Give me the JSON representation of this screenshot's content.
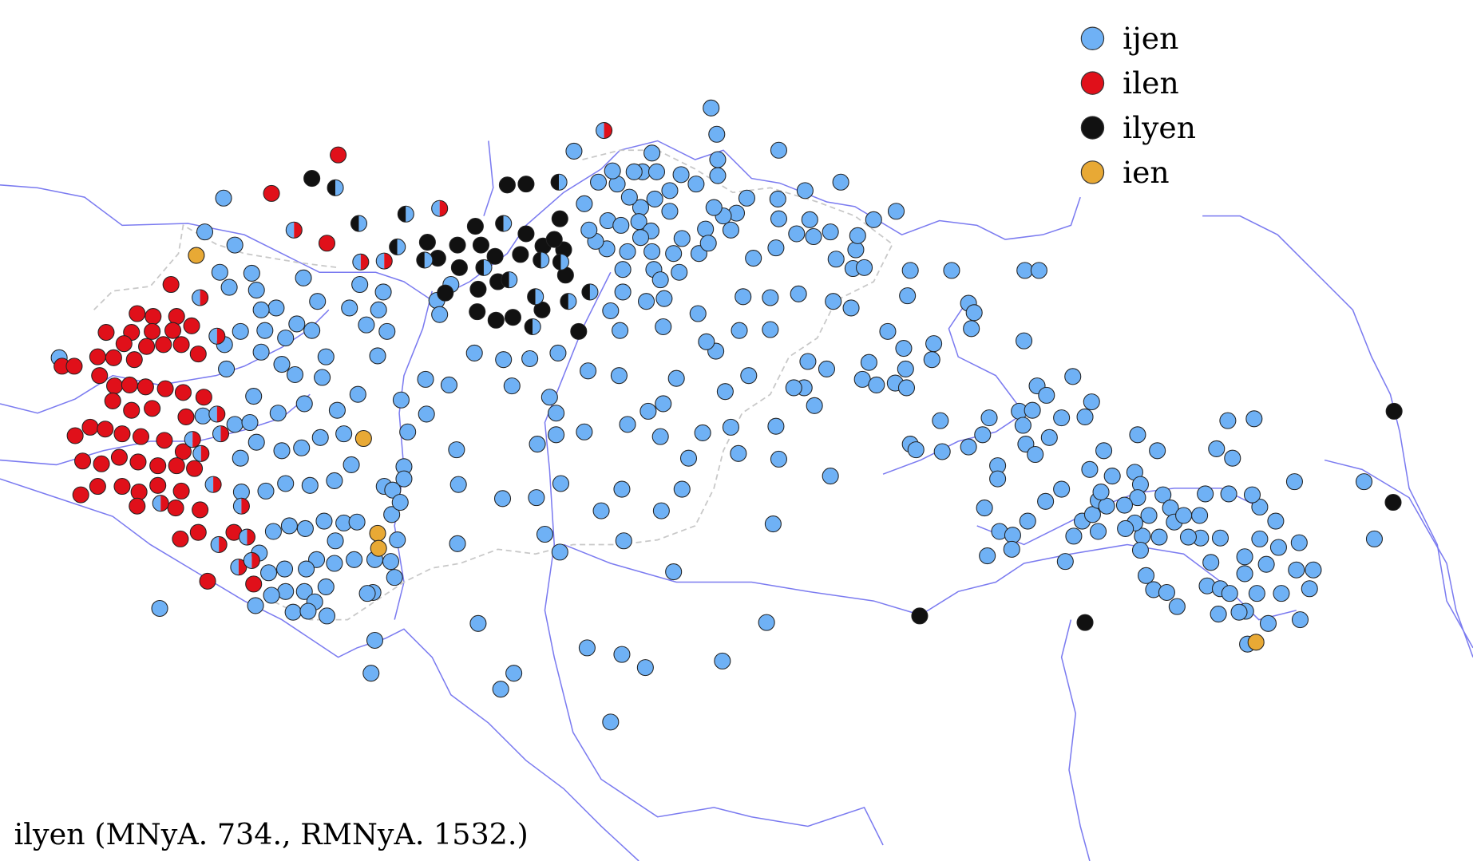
{
  "legend": [
    {
      "label": "ijen",
      "color": "#6fb1f5"
    },
    {
      "label": "ilen",
      "color": "#e0101a"
    },
    {
      "label": "ilyen",
      "color": "#111111"
    },
    {
      "label": "ien",
      "color": "#e8a935"
    }
  ],
  "caption": "ilyen (MNyA. 734., RMNyA. 1532.)"
}
